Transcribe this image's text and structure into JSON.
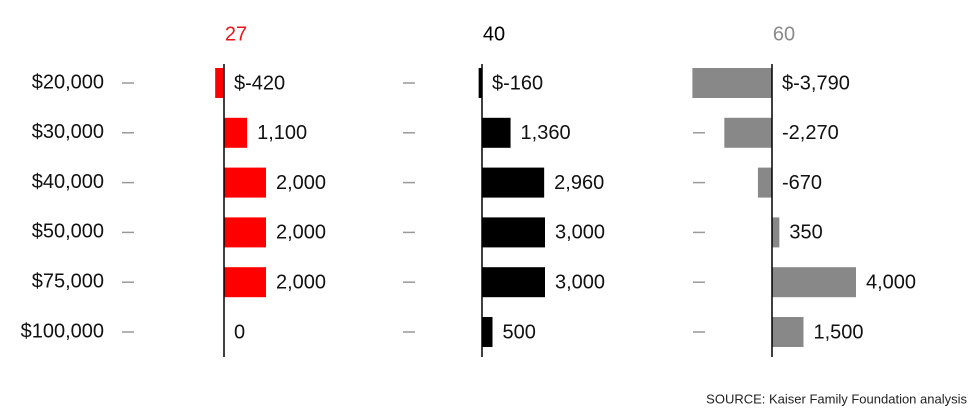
{
  "chart_data": [
    {
      "type": "bar",
      "title": "27",
      "title_color": "#e8171b",
      "color": "#ff0000",
      "categories": [
        "$20,000",
        "$30,000",
        "$40,000",
        "$50,000",
        "$75,000",
        "$100,000"
      ],
      "values": [
        -420,
        1100,
        2000,
        2000,
        2000,
        0
      ],
      "value_labels": [
        "$-420",
        "1,100",
        "2,000",
        "2,000",
        "2,000",
        "0"
      ]
    },
    {
      "type": "bar",
      "title": "40",
      "title_color": "#000000",
      "color": "#000000",
      "values": [
        -160,
        1360,
        2960,
        3000,
        3000,
        500
      ],
      "value_labels": [
        "$-160",
        "1,360",
        "2,960",
        "3,000",
        "3,000",
        "500"
      ]
    },
    {
      "type": "bar",
      "title": "60",
      "title_color": "#8a8a8a",
      "color": "#888888",
      "values": [
        -3790,
        -2270,
        -670,
        350,
        4000,
        1500
      ],
      "value_labels": [
        "$-3,790",
        "-2,270",
        "-670",
        "350",
        "4,000",
        "1,500"
      ]
    }
  ],
  "source": "SOURCE: Kaiser Family Foundation analysis"
}
